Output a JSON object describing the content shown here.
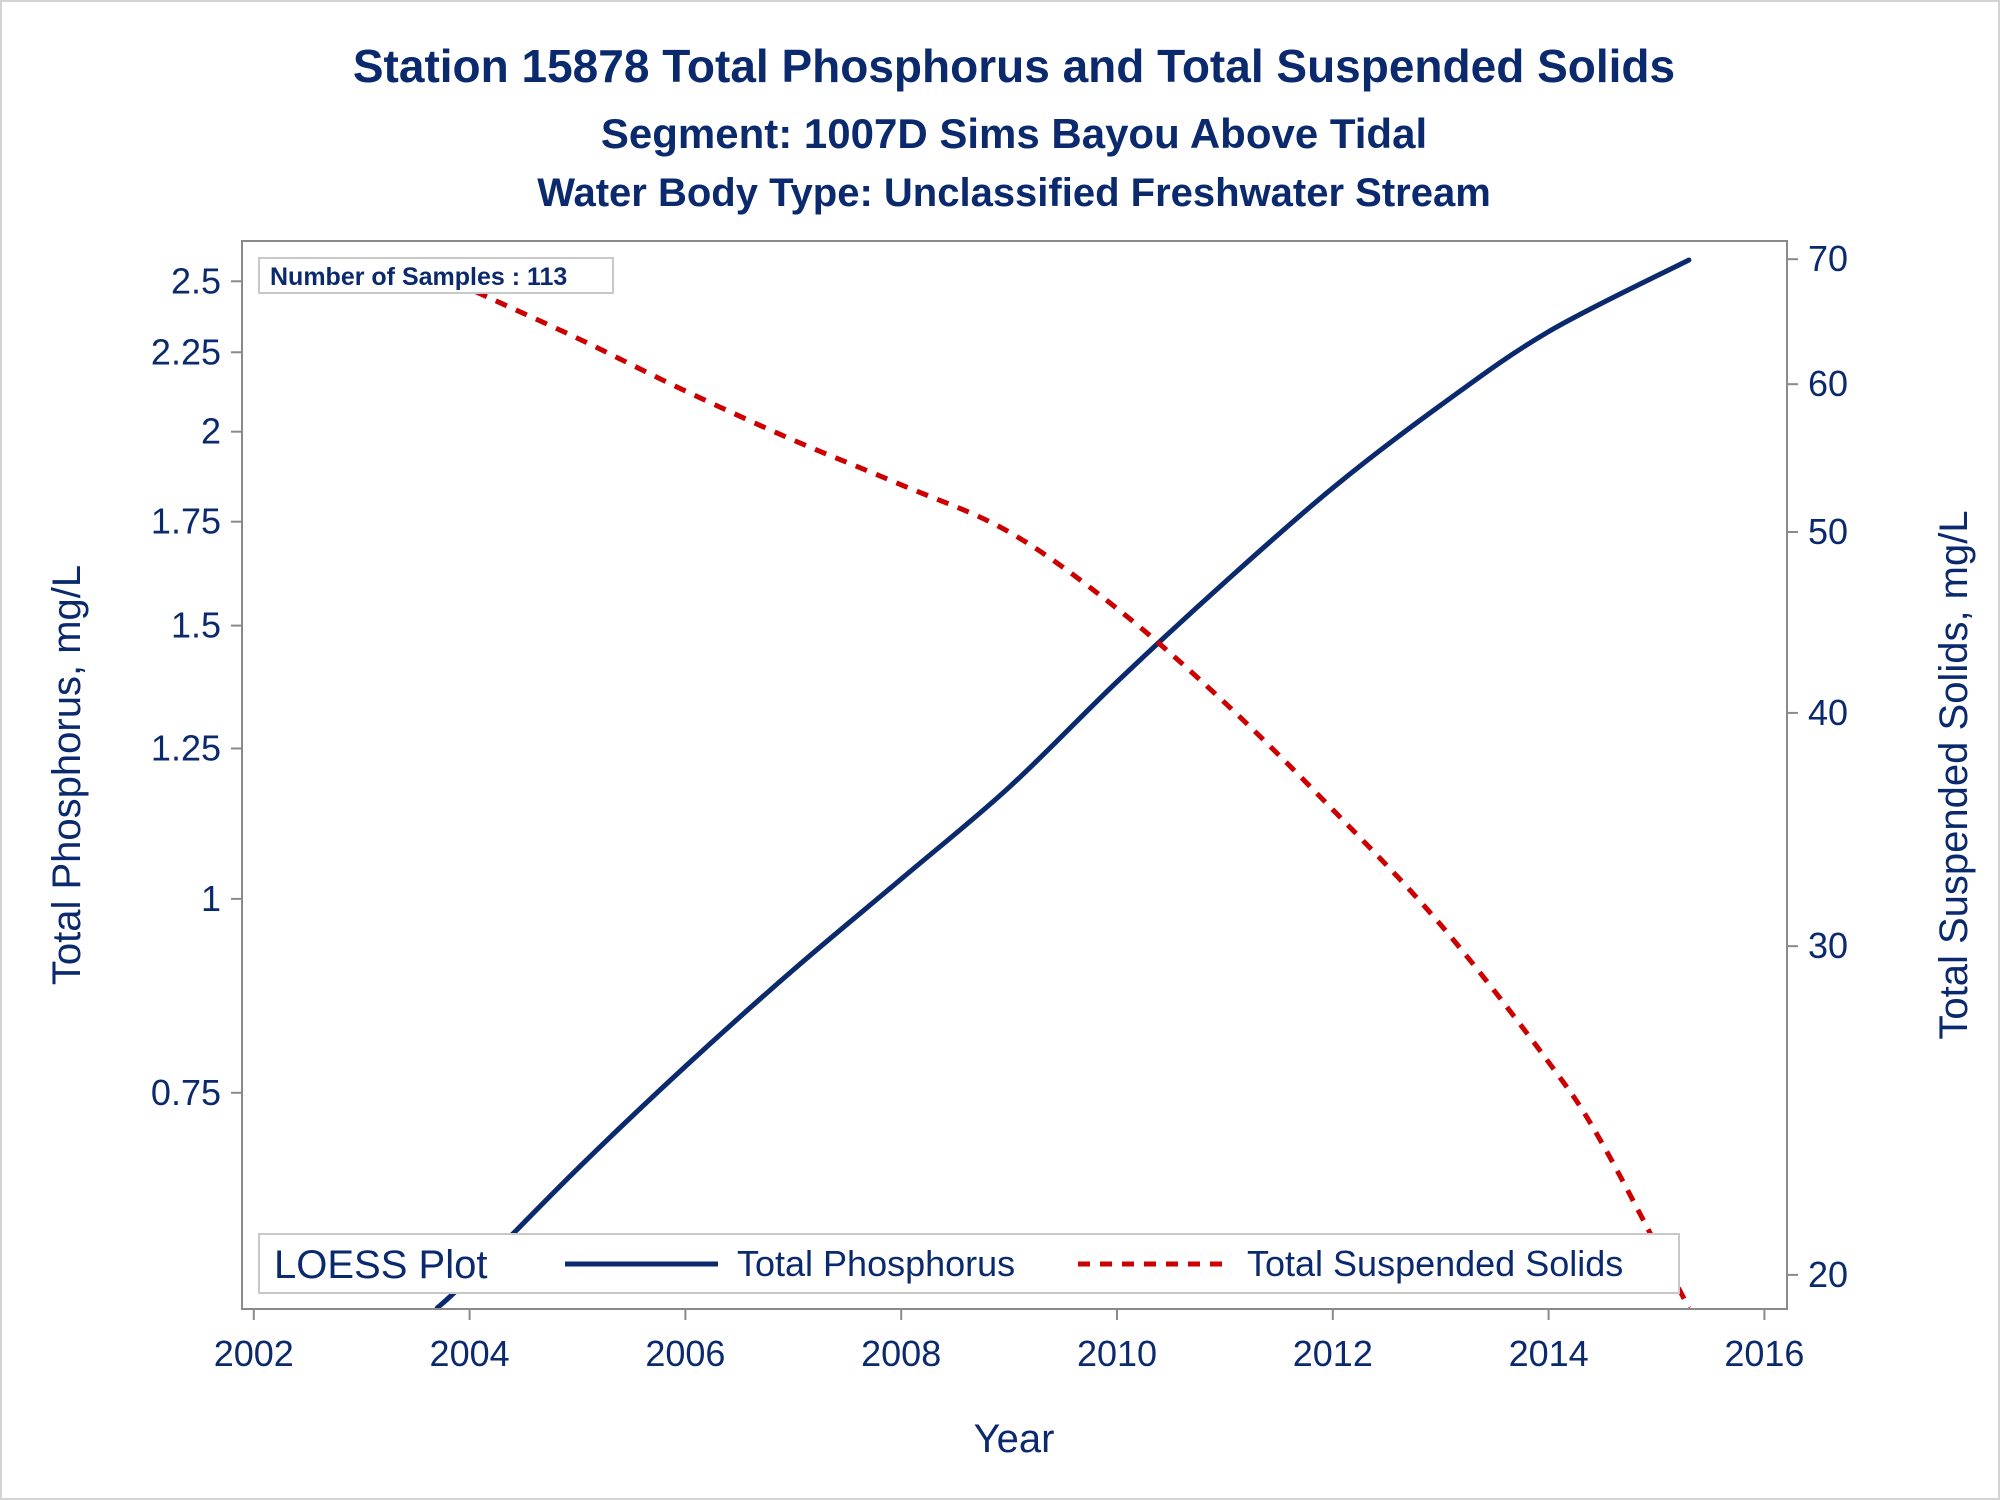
{
  "titles": {
    "main": "Station 15878  Total Phosphorus and Total Suspended Solids",
    "segment": "Segment: 1007D  Sims Bayou Above Tidal",
    "water_body": "Water Body Type: Unclassified Freshwater Stream"
  },
  "annotation": "Number of Samples : 113",
  "legend": {
    "title": "LOESS Plot",
    "entries": [
      "Total Phosphorus",
      "Total Suspended Solids"
    ]
  },
  "colors": {
    "text": "#0b2a6e",
    "phosphorus": "#0b2a6e",
    "solids": "#cc0000",
    "axis": "#8a8a8a"
  },
  "chart_data": {
    "type": "line",
    "xlabel": "Year",
    "ylabel_left": "Total Phosphorus, mg/L",
    "ylabel_right": "Total Suspended Solids, mg/L",
    "x_range": [
      2001.9,
      2016.2
    ],
    "x_ticks": [
      2002,
      2004,
      2006,
      2008,
      2010,
      2012,
      2014,
      2016
    ],
    "y_left_scale": "log",
    "y_left_range": [
      0.545,
      2.65
    ],
    "y_left_ticks": [
      0.75,
      1,
      1.25,
      1.5,
      1.75,
      2,
      2.25,
      2.5
    ],
    "y_right_scale": "log",
    "y_right_range": [
      19.2,
      71.5
    ],
    "y_right_ticks": [
      20,
      30,
      40,
      50,
      60,
      70
    ],
    "grid": false,
    "legend_position": "bottom-inside",
    "series": [
      {
        "name": "Total Phosphorus",
        "axis": "left",
        "style": "solid",
        "x": [
          2003.7,
          2004.0,
          2005.0,
          2006.0,
          2007.0,
          2008.0,
          2009.0,
          2010.0,
          2011.0,
          2012.0,
          2013.0,
          2014.0,
          2015.3
        ],
        "y": [
          0.545,
          0.57,
          0.67,
          0.78,
          0.9,
          1.03,
          1.18,
          1.38,
          1.6,
          1.84,
          2.08,
          2.32,
          2.58
        ]
      },
      {
        "name": "Total Suspended Solids",
        "axis": "right",
        "style": "dashed",
        "x": [
          2003.7,
          2004.0,
          2005.0,
          2006.0,
          2007.0,
          2008.0,
          2009.0,
          2010.0,
          2011.0,
          2012.0,
          2013.0,
          2014.0,
          2014.5,
          2015.3
        ],
        "y": [
          69.0,
          67.5,
          63.5,
          59.5,
          56.0,
          53.0,
          50.0,
          45.5,
          40.5,
          35.5,
          30.8,
          26.0,
          23.5,
          19.2
        ]
      }
    ]
  }
}
